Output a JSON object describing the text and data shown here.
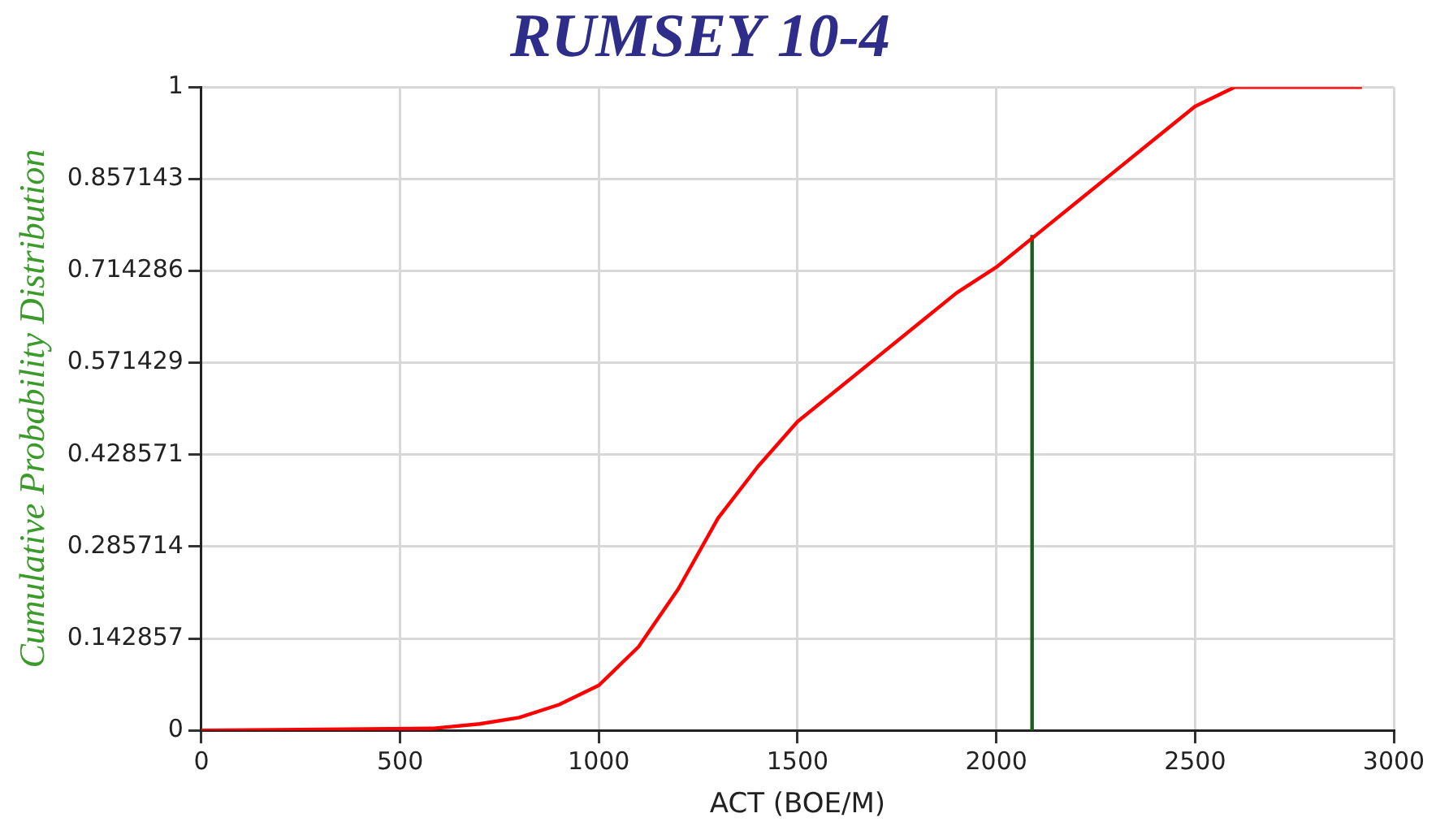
{
  "chart_data": {
    "type": "line",
    "title": "RUMSEY 10-4",
    "xlabel": "ACT (BOE/M)",
    "ylabel": "Cumulative Probability Distribution",
    "xlim": [
      0,
      3000
    ],
    "xticks": [
      0,
      500,
      1000,
      1500,
      2000,
      2500,
      3000
    ],
    "ylim": [
      0,
      1
    ],
    "yticks": [
      0,
      0.142857,
      0.285714,
      0.428571,
      0.571429,
      0.714286,
      0.857143,
      1
    ],
    "grid": true,
    "legend": false,
    "marker": "none",
    "line_style": "solid",
    "series": [
      {
        "color": "#ff0000",
        "x": [
          0,
          580,
          700,
          800,
          900,
          1000,
          1100,
          1200,
          1300,
          1400,
          1500,
          1600,
          1700,
          1800,
          1900,
          2000,
          2100,
          2200,
          2300,
          2400,
          2500,
          2600,
          2920
        ],
        "values": [
          0,
          0.003,
          0.01,
          0.02,
          0.04,
          0.07,
          0.13,
          0.22,
          0.33,
          0.41,
          0.48,
          0.53,
          0.58,
          0.63,
          0.68,
          0.72,
          0.77,
          0.82,
          0.87,
          0.92,
          0.97,
          1,
          1
        ]
      },
      {
        "color": "#1e5b1e",
        "x": [
          2090,
          2090
        ],
        "values": [
          0,
          0.77
        ]
      }
    ]
  }
}
